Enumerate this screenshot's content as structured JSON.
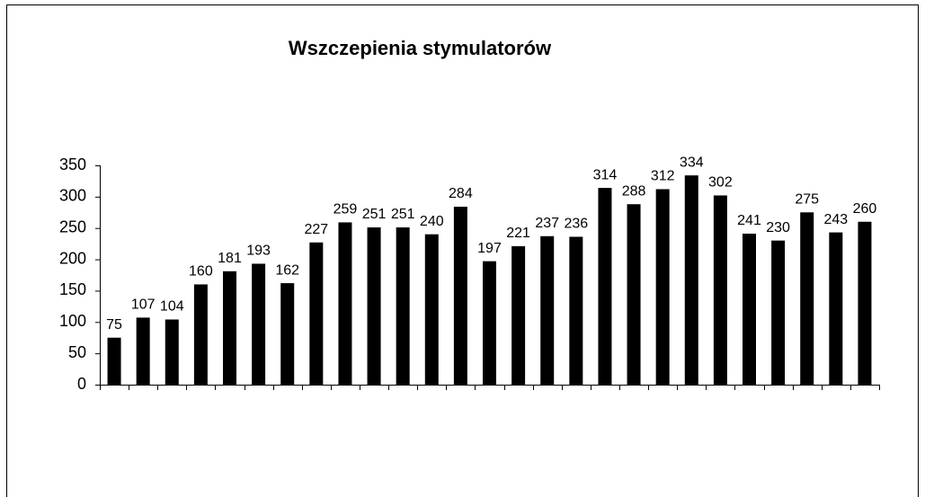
{
  "chart_data": {
    "type": "bar",
    "title": "Wszczepienia stymulatorów",
    "categories": [
      null,
      null,
      null,
      null,
      null,
      null,
      null,
      null,
      null,
      null,
      null,
      null,
      null,
      null,
      null,
      null,
      null,
      null,
      null,
      null,
      null,
      null,
      null,
      null,
      null,
      null,
      null
    ],
    "values": [
      75,
      107,
      104,
      160,
      181,
      193,
      162,
      227,
      259,
      251,
      251,
      240,
      284,
      197,
      221,
      237,
      236,
      314,
      288,
      312,
      334,
      302,
      241,
      230,
      275,
      243,
      260
    ],
    "color": "#000000",
    "ylim": [
      0,
      350
    ],
    "yticks": [
      0,
      50,
      100,
      150,
      200,
      250,
      300,
      350
    ],
    "grid": false
  }
}
